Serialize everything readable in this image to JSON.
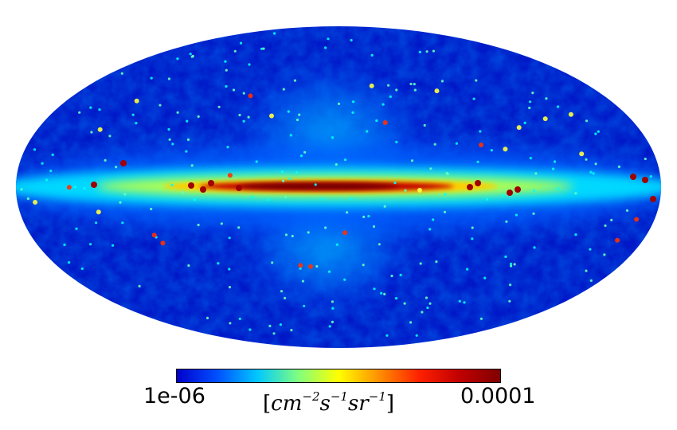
{
  "colorbar": {
    "min_label": "1e-06",
    "max_label": "0.0001",
    "unit": {
      "open": "[",
      "t1": "cm",
      "e1": "−2",
      "t2": "s",
      "e2": "−1",
      "t3": "sr",
      "e3": "−1",
      "close": "]"
    },
    "stops": [
      "#0000cc",
      "#0050ff",
      "#00c8ff",
      "#7fff7f",
      "#ffff00",
      "#ff9000",
      "#ff2000",
      "#c00000",
      "#800000"
    ]
  },
  "map": {
    "projection": "mollweide",
    "scale": "log",
    "palette": "jet",
    "colors": {
      "background_deep": "#0018c8",
      "diffuse": "#0060ff",
      "plane_outer": "#00d8ff",
      "plane_mid": "#b0ff50",
      "plane_core": "#ffcc00",
      "center_hot": "#c00000",
      "center_core": "#700000"
    }
  }
}
